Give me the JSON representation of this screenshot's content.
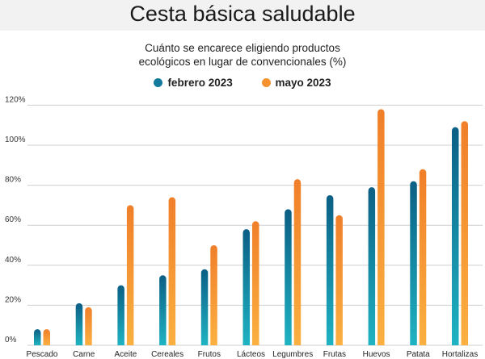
{
  "header": {
    "title": "Cesta básica saludable",
    "subtitle_line1": "Cuánto se encarece eligiendo productos",
    "subtitle_line2": "ecológicos en lugar de convencionales (%)"
  },
  "colors": {
    "febrero_top": "#0b5f84",
    "febrero_bottom": "#1fb3c2",
    "mayo_top": "#f07f2a",
    "mayo_bottom": "#fbb040",
    "grid": "#cfcfcf",
    "title_band": "#f2f2f2"
  },
  "chart_data": {
    "type": "bar",
    "title": "Cuánto se encarece eligiendo productos ecológicos en lugar de convencionales (%)",
    "categories": [
      "Pescado",
      "Carne",
      "Aceite",
      "Cereales",
      "Frutos",
      "Lácteos",
      "Legumbres",
      "Frutas",
      "Huevos",
      "Patata",
      "Hortalizas"
    ],
    "series": [
      {
        "name": "febrero 2023",
        "values": [
          8,
          21,
          30,
          35,
          38,
          58,
          68,
          75,
          79,
          82,
          109
        ]
      },
      {
        "name": "mayo 2023",
        "values": [
          8,
          19,
          70,
          74,
          50,
          62,
          83,
          65,
          118,
          88,
          112
        ]
      }
    ],
    "yticks": [
      "0%",
      "20%",
      "40%",
      "60%",
      "80%",
      "100%",
      "120%"
    ],
    "ylim": [
      0,
      125
    ],
    "grid": true,
    "legend_position": "top-center"
  }
}
